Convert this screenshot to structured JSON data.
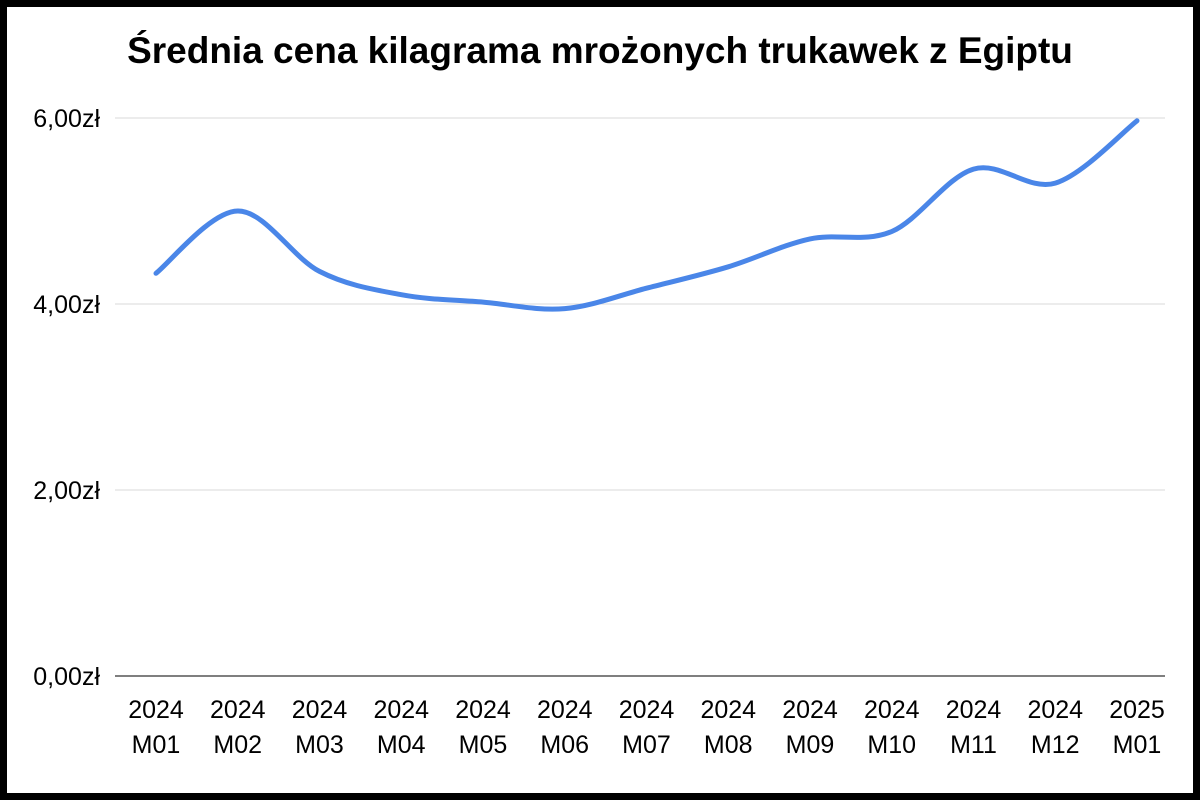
{
  "chart_data": {
    "type": "line",
    "title": "Średnia cena kilagrama mrożonych trukawek z Egiptu",
    "xlabel": "",
    "ylabel": "",
    "categories": [
      [
        "2024",
        "M01"
      ],
      [
        "2024",
        "M02"
      ],
      [
        "2024",
        "M03"
      ],
      [
        "2024",
        "M04"
      ],
      [
        "2024",
        "M05"
      ],
      [
        "2024",
        "M06"
      ],
      [
        "2024",
        "M07"
      ],
      [
        "2024",
        "M08"
      ],
      [
        "2024",
        "M09"
      ],
      [
        "2024",
        "M10"
      ],
      [
        "2024",
        "M11"
      ],
      [
        "2024",
        "M12"
      ],
      [
        "2025",
        "M01"
      ]
    ],
    "series": [
      {
        "color": "#4a86e8",
        "values": [
          4.33,
          5.0,
          4.35,
          4.1,
          4.02,
          3.95,
          4.17,
          4.4,
          4.7,
          4.78,
          5.45,
          5.3,
          5.97
        ]
      }
    ],
    "ylim": [
      0,
      6
    ],
    "yticks": [
      {
        "value": 0,
        "label": "0,00zł"
      },
      {
        "value": 2,
        "label": "2,00zł"
      },
      {
        "value": 4,
        "label": "4,00zł"
      },
      {
        "value": 6,
        "label": "6,00zł"
      }
    ],
    "grid": true,
    "legend": "none"
  }
}
